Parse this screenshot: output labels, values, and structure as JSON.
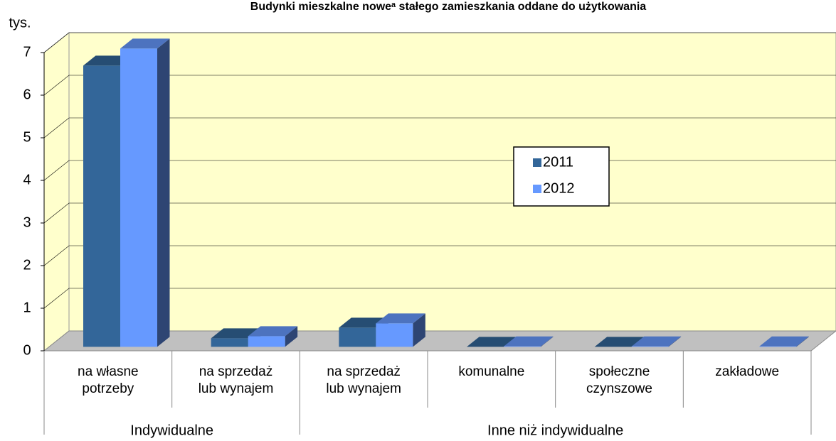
{
  "chart_data": {
    "type": "bar3d",
    "title": "Budynki mieszkalne noweᵃ stałego zamieszkania oddane do użytkowania",
    "ylabel": "tys.",
    "categories": [
      "na własne\npotrzeby",
      "na sprzedaż\nlub wynajem",
      "na sprzedaż\nlub wynajem",
      "komunalne",
      "społeczne\nczynszowe",
      "zakładowe"
    ],
    "groups": [
      {
        "label": "Indywidualne",
        "span": 2
      },
      {
        "label": "Inne niż indywidualne",
        "span": 4
      }
    ],
    "series": [
      {
        "name": "2011",
        "color": "#336699",
        "values": [
          6.6,
          0.2,
          0.45,
          0,
          0,
          null
        ]
      },
      {
        "name": "2012",
        "color": "#6699ff",
        "values": [
          7.0,
          0.25,
          0.55,
          0.01,
          0.01,
          0.01
        ]
      }
    ],
    "ylim": [
      0,
      7
    ],
    "yticks": [
      0,
      1,
      2,
      3,
      4,
      5,
      6,
      7
    ],
    "grid": true,
    "wall_color": "#ffffcc",
    "floor_color": "#c0c0c0"
  }
}
